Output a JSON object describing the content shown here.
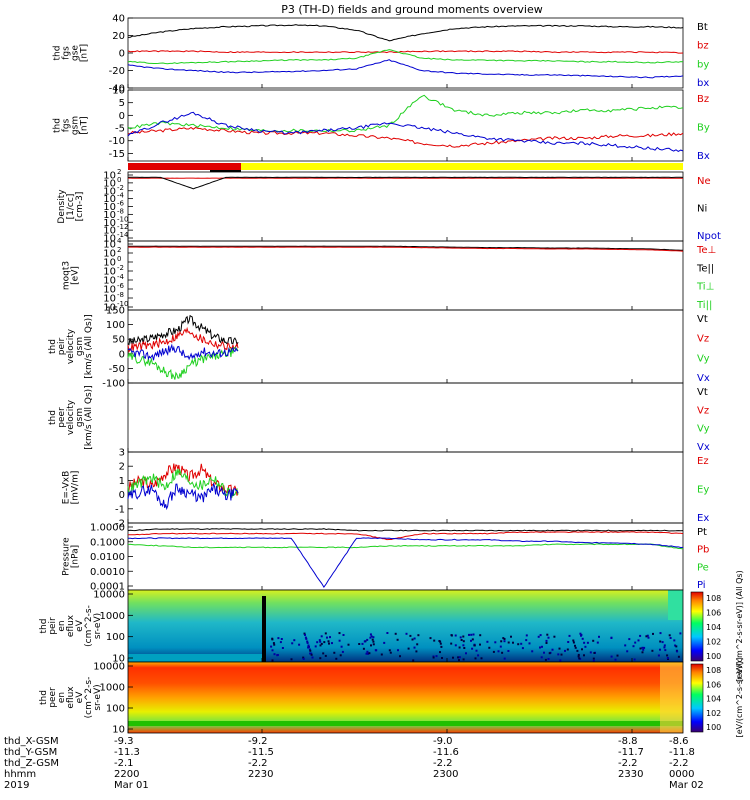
{
  "title": "P3 (TH-D) fields and ground moments overview",
  "colors": {
    "black": "#000000",
    "red": "#e00000",
    "green": "#20d020",
    "blue": "#0000d0",
    "yellow": "#ffff00",
    "bar_red": "#e00000"
  },
  "chart_data": [
    {
      "type": "line",
      "panel": "fgs_gse",
      "ylabel": [
        "thd",
        "fgs",
        "gse",
        "[nT]"
      ],
      "ylim": [
        -40,
        40
      ],
      "yticks": [
        "40",
        "20",
        "0",
        "-20",
        "-40"
      ],
      "legend": [
        "Bt",
        "bz",
        "by",
        "bx"
      ],
      "series": [
        {
          "name": "Bt",
          "color": "black",
          "values": [
            18,
            24,
            28,
            30,
            31,
            32,
            31,
            26,
            14,
            22,
            28,
            30,
            31,
            31,
            31,
            30,
            30,
            29
          ]
        },
        {
          "name": "bz",
          "color": "red",
          "values": [
            2,
            2,
            2,
            1,
            1,
            1,
            1,
            1,
            1,
            2,
            2,
            2,
            2,
            1,
            1,
            1,
            1,
            0
          ]
        },
        {
          "name": "by",
          "color": "green",
          "values": [
            -10,
            -12,
            -11,
            -10,
            -9,
            -8,
            -8,
            -6,
            4,
            -6,
            -8,
            -8,
            -9,
            -9,
            -10,
            -10,
            -11,
            -10
          ]
        },
        {
          "name": "bx",
          "color": "blue",
          "values": [
            -14,
            -18,
            -20,
            -22,
            -22,
            -21,
            -20,
            -18,
            -8,
            -20,
            -23,
            -24,
            -25,
            -25,
            -26,
            -27,
            -28,
            -26
          ]
        }
      ]
    },
    {
      "type": "line",
      "panel": "fgs_gsm",
      "ylabel": [
        "thd",
        "fgs",
        "gsm",
        "[nT]"
      ],
      "ylim": [
        -18,
        10
      ],
      "yticks": [
        "10",
        "5",
        "0",
        "-5",
        "-10",
        "-15"
      ],
      "legend": [
        "Bz",
        "By",
        "Bx"
      ],
      "series": [
        {
          "name": "Bz",
          "color": "red",
          "values": [
            -7,
            -6,
            -5,
            -6,
            -7,
            -7,
            -7,
            -8,
            -9,
            -11,
            -12,
            -11,
            -10,
            -9,
            -9,
            -8,
            -8,
            -7
          ]
        },
        {
          "name": "By",
          "color": "green",
          "values": [
            -5,
            -3,
            -4,
            -5,
            -6,
            -6,
            -6,
            -6,
            -4,
            8,
            2,
            0,
            1,
            1,
            2,
            2,
            3,
            3
          ]
        },
        {
          "name": "Bx",
          "color": "blue",
          "values": [
            -8,
            -3,
            1,
            -4,
            -6,
            -7,
            -6,
            -5,
            -3,
            -5,
            -7,
            -9,
            -10,
            -11,
            -11,
            -12,
            -13,
            -14
          ]
        }
      ]
    },
    {
      "type": "line",
      "panel": "density",
      "ylabel": [
        "Density",
        "[1/cc]",
        "[cm-3]"
      ],
      "yticks_log": [
        2,
        0,
        -2,
        -4,
        -6,
        -8,
        -10,
        -12,
        -14
      ],
      "legend": [
        "Ne",
        "Ni",
        "Npot"
      ],
      "series": [
        {
          "name": "Ne",
          "color": "red",
          "log10": [
            1.2,
            1.2,
            1.2,
            1.2,
            1.2,
            1.2,
            1.2,
            1.2,
            1.2,
            1.2,
            1.2,
            1.2,
            1.2,
            1.2,
            1.2,
            1.2,
            1.2,
            1.2
          ]
        },
        {
          "name": "Ni",
          "color": "black",
          "log10": [
            1.4,
            1.4,
            -1.5,
            1.4,
            1.4,
            1.4,
            1.4,
            1.4,
            1.4,
            1.4,
            1.4,
            1.4,
            1.4,
            1.4,
            1.4,
            1.4,
            1.4,
            1.4
          ]
        }
      ]
    },
    {
      "type": "line",
      "panel": "temperature",
      "ylabel": [
        "moqt3",
        "[eV]"
      ],
      "yticks_log": [
        4,
        2,
        0,
        -2,
        -4,
        -6,
        -8,
        -10
      ],
      "legend": [
        "Te⊥",
        "Te||",
        "Ti⊥",
        "Ti||"
      ],
      "series": [
        {
          "name": "Te||",
          "color": "black",
          "log10": [
            3.5,
            3.5,
            3.5,
            3.5,
            3.5,
            3.5,
            3.5,
            3.5,
            3.5,
            3.4,
            3.3,
            3.2,
            3.2,
            3.1,
            3.1,
            3.0,
            2.9,
            2.6
          ]
        },
        {
          "name": "Te⊥",
          "color": "red",
          "log10": [
            3.3,
            3.3,
            3.3,
            3.3,
            3.3,
            3.3,
            3.3,
            3.3,
            3.3,
            3.2,
            3.1,
            3.0,
            3.0,
            2.9,
            2.9,
            2.8,
            2.7,
            2.4
          ]
        }
      ]
    },
    {
      "type": "line",
      "panel": "peir_velocity",
      "ylabel": [
        "thd",
        "peir",
        "velocity",
        "gsm",
        "[km/s (All Qs)]"
      ],
      "ylim": [
        -100,
        150
      ],
      "yticks": [
        "150",
        "100",
        "50",
        "0",
        "-50",
        "-100"
      ],
      "legend": [
        "Vt",
        "Vz",
        "Vy",
        "Vx"
      ],
      "series": [
        {
          "name": "Vt",
          "color": "black",
          "values": [
            40,
            45,
            55,
            70,
            80,
            120,
            90,
            60,
            45,
            40
          ]
        },
        {
          "name": "Vz",
          "color": "red",
          "values": [
            20,
            25,
            30,
            40,
            60,
            80,
            50,
            35,
            25,
            20
          ]
        },
        {
          "name": "Vy",
          "color": "green",
          "values": [
            -10,
            -20,
            -30,
            -60,
            -80,
            -40,
            -20,
            -10,
            0,
            10
          ]
        },
        {
          "name": "Vx",
          "color": "blue",
          "values": [
            5,
            0,
            -10,
            10,
            20,
            -20,
            10,
            0,
            5,
            10
          ]
        }
      ]
    },
    {
      "type": "line",
      "panel": "peer_velocity",
      "ylabel": [
        "thd",
        "peer",
        "velocity",
        "gsm",
        "[km/s (All Qs)]"
      ],
      "legend": [
        "Vt",
        "Vz",
        "Vy",
        "Vx"
      ],
      "series": []
    },
    {
      "type": "line",
      "panel": "efield",
      "ylabel": [
        "E=-VxB",
        "[mV/m]"
      ],
      "ylim": [
        -2,
        3
      ],
      "yticks": [
        "3",
        "2",
        "1",
        "0",
        "-1",
        "-2"
      ],
      "legend": [
        "Ez",
        "Ey",
        "Ex"
      ],
      "series": [
        {
          "name": "Ez",
          "color": "red",
          "values": [
            0.5,
            1.0,
            0.6,
            1.5,
            2.0,
            1.2,
            1.8,
            0.8,
            0.4,
            0.2
          ]
        },
        {
          "name": "Ey",
          "color": "green",
          "values": [
            0.3,
            0.8,
            1.2,
            0.5,
            1.6,
            1.0,
            0.6,
            1.2,
            0.2,
            0.0
          ]
        },
        {
          "name": "Ex",
          "color": "blue",
          "values": [
            -0.2,
            0.2,
            0.4,
            -0.8,
            0.5,
            0.1,
            -0.3,
            0.4,
            -0.1,
            0.1
          ]
        }
      ]
    },
    {
      "type": "line",
      "panel": "pressure",
      "ylabel": [
        "Pressure",
        "[nPa]"
      ],
      "yticks": [
        "1.0000",
        "0.1000",
        "0.0100",
        "0.0010",
        "0.0001"
      ],
      "legend": [
        "Pt",
        "Pb",
        "Pe",
        "Pi"
      ],
      "series": [
        {
          "name": "Pt",
          "color": "black",
          "log10": [
            -0.3,
            -0.2,
            -0.2,
            -0.2,
            -0.2,
            -0.2,
            -0.2,
            -0.3,
            -0.3,
            -0.3,
            -0.3,
            -0.3,
            -0.3,
            -0.3,
            -0.3,
            -0.3,
            -0.3,
            -0.3
          ]
        },
        {
          "name": "Pb",
          "color": "red",
          "log10": [
            -0.6,
            -0.5,
            -0.5,
            -0.5,
            -0.5,
            -0.5,
            -0.5,
            -0.5,
            -0.9,
            -0.5,
            -0.5,
            -0.5,
            -0.4,
            -0.4,
            -0.4,
            -0.4,
            -0.4,
            -0.5
          ]
        },
        {
          "name": "Pe",
          "color": "green",
          "log10": [
            -1.2,
            -1.3,
            -1.4,
            -1.4,
            -1.4,
            -1.4,
            -1.4,
            -1.4,
            -1.3,
            -1.3,
            -1.3,
            -1.3,
            -1.3,
            -1.2,
            -1.2,
            -1.2,
            -1.2,
            -1.5
          ]
        },
        {
          "name": "Pi",
          "color": "blue",
          "log10": [
            -0.8,
            -0.8,
            -0.8,
            -0.8,
            -0.8,
            -0.8,
            -4,
            -0.8,
            -0.8,
            -0.9,
            -0.9,
            -0.9,
            -1.0,
            -1.0,
            -1.1,
            -1.1,
            -1.2,
            -1.4
          ]
        }
      ]
    },
    {
      "type": "heatmap",
      "panel": "peir_eflux",
      "ylabel": [
        "thd",
        "peir",
        "en",
        "eflux",
        "eV",
        "(cm^2-s-",
        "sr-eV)"
      ],
      "yticks": [
        "10000",
        "1000",
        "100",
        "10"
      ],
      "colorbar_ticks": [
        "10^8",
        "10^6",
        "10^4",
        "10^2",
        "10^0"
      ],
      "colorbar_label": "[eV/(cm^2-s-sr-eV)] (All Qs)"
    },
    {
      "type": "heatmap",
      "panel": "peer_eflux",
      "ylabel": [
        "thd",
        "peer",
        "en",
        "eflux",
        "eV",
        "(cm^2-s-",
        "sr-eV)"
      ],
      "yticks": [
        "10000",
        "1000",
        "100",
        "10"
      ],
      "colorbar_ticks": [
        "10^8",
        "10^6",
        "10^4",
        "10^2",
        "10^0"
      ],
      "colorbar_label": "[eV/(cm^2-s-sr-eV)]"
    }
  ],
  "x_axis": {
    "rows": [
      {
        "label": "thd_X-GSM",
        "values": [
          "-9.3",
          "-9.2",
          "-9.0",
          "-8.8",
          "-8.6"
        ]
      },
      {
        "label": "thd_Y-GSM",
        "values": [
          "-11.3",
          "-11.5",
          "-11.6",
          "-11.7",
          "-11.8"
        ]
      },
      {
        "label": "thd_Z-GSM",
        "values": [
          "-2.1",
          "-2.2",
          "-2.2",
          "-2.2",
          "-2.2"
        ]
      },
      {
        "label": "hhmm",
        "values": [
          "2200",
          "2230",
          "2300",
          "2330",
          "0000"
        ]
      },
      {
        "label": "2019",
        "values": [
          "Mar 01",
          "",
          "",
          "",
          "Mar 02"
        ]
      }
    ]
  }
}
